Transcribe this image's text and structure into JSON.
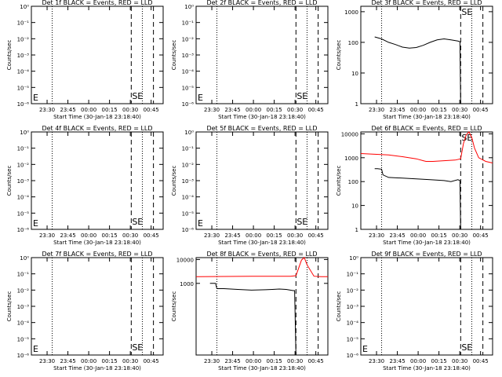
{
  "figure": {
    "xlabel": "Start Time (30-Jan-18 23:18:40)",
    "ylabel": "Counts/sec",
    "x_ticks": [
      "23:30",
      "23:45",
      "00:00",
      "00:15",
      "00:30",
      "00:45"
    ],
    "x_ticks_min": [
      11.33,
      26.33,
      41.33,
      56.33,
      71.33,
      86.33
    ],
    "xlim_min": [
      0,
      95
    ],
    "dashed_lines_min": [
      72,
      88
    ],
    "dotted_lines_min": [
      15,
      80,
      98
    ],
    "colors": {
      "events": "#000000",
      "lld": "#ff0000",
      "axes": "#000000"
    }
  },
  "chart_data": [
    {
      "type": "line",
      "title": "Det 1f BLACK = Events, RED = LLD",
      "yscale": "log",
      "ylim": [
        1e-06,
        0.0001
      ],
      "y_ticks": [
        "10⁻⁶",
        "10⁻⁵",
        "10⁻⁴",
        "10⁻³",
        "10⁻²",
        "10⁻¹",
        "10⁰"
      ],
      "annotations": [
        "E",
        "SE"
      ],
      "series": []
    },
    {
      "type": "line",
      "title": "Det 2f BLACK = Events, RED = LLD",
      "yscale": "log",
      "ylim": [
        1e-06,
        0.0001
      ],
      "y_ticks": [
        "10⁻⁶",
        "10⁻⁵",
        "10⁻⁴",
        "10⁻³",
        "10⁻²",
        "10⁻¹",
        "10⁰"
      ],
      "annotations": [
        "E",
        "SE"
      ],
      "series": []
    },
    {
      "type": "line",
      "title": "Det 3f BLACK = Events, RED = LLD",
      "yscale": "log",
      "ylim": [
        1,
        1500
      ],
      "y_ticks": [
        "1",
        "10",
        "100",
        "1000"
      ],
      "annotations": [
        "SE"
      ],
      "series": [
        {
          "color": "black",
          "x": [
            10,
            15,
            20,
            25,
            30,
            35,
            40,
            45,
            50,
            55,
            60,
            65,
            70,
            71.5,
            72
          ],
          "y": [
            150,
            130,
            100,
            85,
            70,
            65,
            68,
            80,
            100,
            120,
            130,
            120,
            110,
            105,
            1
          ]
        }
      ]
    },
    {
      "type": "line",
      "title": "Det 4f BLACK = Events, RED = LLD",
      "yscale": "log",
      "ylim": [
        1e-06,
        0.0001
      ],
      "y_ticks": [
        "10⁻⁶",
        "10⁻⁵",
        "10⁻⁴",
        "10⁻³",
        "10⁻²",
        "10⁻¹",
        "10⁰"
      ],
      "annotations": [
        "E",
        "SE"
      ],
      "series": []
    },
    {
      "type": "line",
      "title": "Det 5f BLACK = Events, RED = LLD",
      "yscale": "log",
      "ylim": [
        1e-06,
        0.0001
      ],
      "y_ticks": [
        "10⁻⁶",
        "10⁻⁵",
        "10⁻⁴",
        "10⁻³",
        "10⁻²",
        "10⁻¹",
        "10⁰"
      ],
      "annotations": [
        "E",
        "SE"
      ],
      "series": []
    },
    {
      "type": "line",
      "title": "Det 6f BLACK = Events, RED = LLD",
      "yscale": "log",
      "ylim": [
        1,
        12000
      ],
      "y_ticks": [
        "1",
        "10",
        "100",
        "1000",
        "10000"
      ],
      "annotations": [
        "SE"
      ],
      "series": [
        {
          "color": "red",
          "x": [
            0,
            10,
            20,
            30,
            40,
            45,
            47,
            52,
            60,
            68,
            72,
            74,
            76,
            78,
            80,
            82,
            85,
            90,
            95
          ],
          "y": [
            1500,
            1400,
            1300,
            1100,
            900,
            750,
            700,
            700,
            750,
            800,
            900,
            4000,
            9000,
            12000,
            7000,
            2500,
            1000,
            700,
            600
          ]
        },
        {
          "color": "black",
          "x": [
            10,
            12,
            15,
            16,
            20,
            30,
            40,
            50,
            60,
            65,
            70,
            71.5,
            72
          ],
          "y": [
            350,
            350,
            330,
            190,
            150,
            140,
            130,
            120,
            110,
            100,
            120,
            110,
            1
          ]
        }
      ]
    },
    {
      "type": "line",
      "title": "Det 7f BLACK = Events, RED = LLD",
      "yscale": "log",
      "ylim": [
        1e-06,
        0.0001
      ],
      "y_ticks": [
        "10⁻⁶",
        "10⁻⁵",
        "10⁻⁴",
        "10⁻³",
        "10⁻²",
        "10⁻¹",
        "10⁰"
      ],
      "annotations": [
        "E",
        "SE"
      ],
      "series": []
    },
    {
      "type": "line",
      "title": "Det 8f BLACK = Events, RED = LLD",
      "yscale": "log",
      "ylim": [
        1,
        12000
      ],
      "y_ticks": [
        "1000",
        "10000"
      ],
      "annotations": [],
      "series": [
        {
          "color": "red",
          "x": [
            0,
            20,
            40,
            60,
            68,
            72,
            74,
            76,
            78,
            80,
            85,
            90,
            95
          ],
          "y": [
            1900,
            1950,
            2000,
            2000,
            2000,
            2100,
            4500,
            9500,
            12000,
            6000,
            2000,
            1900,
            1900
          ]
        },
        {
          "color": "black",
          "x": [
            10,
            14,
            15,
            20,
            30,
            40,
            50,
            55,
            60,
            65,
            70,
            71,
            72
          ],
          "y": [
            1000,
            1000,
            600,
            600,
            560,
            520,
            540,
            560,
            580,
            560,
            500,
            500,
            1
          ]
        }
      ]
    },
    {
      "type": "line",
      "title": "Det 9f BLACK = Events, RED = LLD",
      "yscale": "log",
      "ylim": [
        1e-06,
        0.0001
      ],
      "y_ticks": [
        "10⁻⁶",
        "10⁻⁵",
        "10⁻⁴",
        "10⁻³",
        "10⁻²",
        "10⁻¹",
        "10⁰"
      ],
      "annotations": [
        "E",
        "SE"
      ],
      "series": []
    }
  ]
}
